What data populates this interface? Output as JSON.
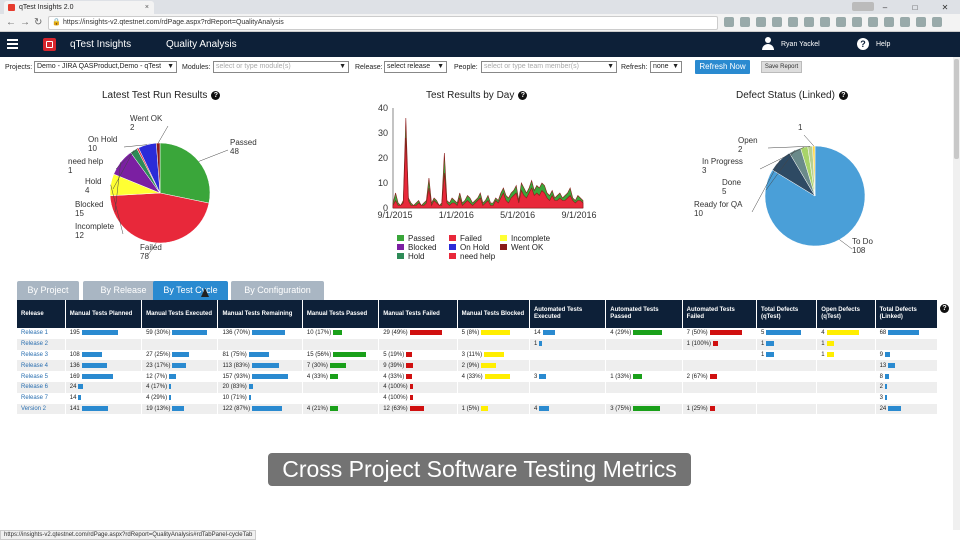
{
  "browser": {
    "tab_title": "qTest Insights 2.0",
    "tab_close": "×",
    "url": "https://insights-v2.qtestnet.com/rdPage.aspx?rdReport=QualityAnalysis",
    "profile": "",
    "win_min": "–",
    "win_max": "□",
    "win_close": "✕"
  },
  "appbar": {
    "app_name": "qTest Insights",
    "page_name": "Quality Analysis",
    "user": "Ryan Yackel",
    "help": "Help"
  },
  "filters": {
    "projects_label": "Projects:",
    "projects_value": "Demo - JIRA QASProduct,Demo - qTest",
    "modules_label": "Modules:",
    "modules_placeholder": "select or type module(s)",
    "release_label": "Release:",
    "release_value": "select release",
    "people_label": "People:",
    "people_placeholder": "select or type team member(s)",
    "refresh_label": "Refresh:",
    "refresh_value": "none",
    "refresh_now": "Refresh Now",
    "save_report": "Save Report"
  },
  "charts_titles": {
    "latest": "Latest Test Run Results",
    "by_day": "Test Results by Day",
    "defects": "Defect Status (Linked)",
    "q": "?"
  },
  "chart_data": [
    {
      "type": "pie",
      "title": "Latest Test Run Results",
      "slices": [
        {
          "label": "Passed",
          "value": 48,
          "color": "#3aa63a"
        },
        {
          "label": "Failed",
          "value": 78,
          "color": "#e8283a"
        },
        {
          "label": "Incomplete",
          "value": 12,
          "color": "#ffff33"
        },
        {
          "label": "Blocked",
          "value": 15,
          "color": "#7b1fa2"
        },
        {
          "label": "Hold",
          "value": 4,
          "color": "#2e8b57"
        },
        {
          "label": "need help",
          "value": 1,
          "color": "#e8283a"
        },
        {
          "label": "On Hold",
          "value": 10,
          "color": "#2b2bd8"
        },
        {
          "label": "Went OK",
          "value": 2,
          "color": "#8b1a1a"
        }
      ]
    },
    {
      "type": "area",
      "title": "Test Results by Day",
      "ylim": [
        0,
        40
      ],
      "yticks": [
        0,
        10,
        20,
        30,
        40
      ],
      "xticks": [
        "9/1/2015",
        "1/1/2016",
        "5/1/2016",
        "9/1/2016"
      ],
      "x_start": "9/1/2015",
      "x_end": "9/30/2016",
      "series": [
        {
          "name": "Passed",
          "color": "#3aa63a",
          "values": [
            2,
            6,
            2,
            1,
            3,
            36,
            4,
            2,
            1,
            2,
            3,
            1,
            2,
            3,
            12,
            2,
            4,
            3,
            1,
            2,
            22,
            3,
            2,
            4,
            3,
            2,
            6,
            2,
            3,
            5,
            4,
            2,
            3,
            4,
            6,
            2,
            3,
            5,
            2,
            2,
            4,
            3,
            6,
            8,
            5,
            4,
            6,
            7,
            9,
            3,
            10,
            8,
            6,
            8,
            11,
            7,
            9,
            8,
            10,
            9,
            6,
            5,
            7,
            4,
            5,
            6,
            4,
            5,
            6,
            8,
            4,
            3,
            5,
            4,
            3
          ]
        },
        {
          "name": "Failed",
          "color": "#e8283a",
          "values": [
            1,
            3,
            1,
            1,
            2,
            28,
            3,
            1,
            1,
            1,
            2,
            1,
            1,
            2,
            8,
            1,
            3,
            2,
            1,
            1,
            14,
            2,
            1,
            2,
            2,
            1,
            4,
            1,
            2,
            3,
            2,
            1,
            2,
            3,
            4,
            1,
            2,
            3,
            1,
            1,
            3,
            2,
            4,
            6,
            3,
            2,
            4,
            5,
            6,
            2,
            7,
            5,
            4,
            6,
            8,
            5,
            6,
            5,
            7,
            6,
            4,
            3,
            5,
            3,
            3,
            4,
            3,
            3,
            4,
            5,
            3,
            2,
            3,
            3,
            2
          ]
        }
      ],
      "legend": [
        "Passed",
        "Failed",
        "Incomplete",
        "Blocked",
        "On Hold",
        "Went OK",
        "Hold",
        "need help"
      ],
      "legend_colors": [
        "#3aa63a",
        "#e8283a",
        "#ffff33",
        "#7b1fa2",
        "#2b2bd8",
        "#8b1a1a",
        "#2e8b57",
        "#e8283a"
      ]
    },
    {
      "type": "pie",
      "title": "Defect Status (Linked)",
      "slices": [
        {
          "label": "To Do",
          "value": 108,
          "color": "#4a9fd8"
        },
        {
          "label": "Ready for QA",
          "value": 10,
          "color": "#2e4a63"
        },
        {
          "label": "Done",
          "value": 5,
          "color": "#6a8a8a"
        },
        {
          "label": "In Progress",
          "value": 3,
          "color": "#a8d36a"
        },
        {
          "label": "Open",
          "value": 2,
          "color": "#b8d090"
        },
        {
          "label": "",
          "value": 1,
          "color": "#ffd84a"
        }
      ],
      "unlabeled_callout": "1"
    }
  ],
  "tabs": [
    "By Project",
    "By Release",
    "By Test Cycle",
    "By Configuration"
  ],
  "table": {
    "headers": [
      "Release",
      "Manual Tests Planned",
      "Manual Tests Executed",
      "Manual Tests Remaining",
      "Manual Tests Passed",
      "Manual Tests Failed",
      "Manual Tests Blocked",
      "Automated Tests Executed",
      "Automated Tests Passed",
      "Automated Tests Failed",
      "Total Defects (qTest)",
      "Open Defects (qTest)",
      "Total Defects (Linked)"
    ],
    "bar_colors": [
      "",
      "#2a8ad0",
      "#2a8ad0",
      "#2a8ad0",
      "#1aa01a",
      "#d01010",
      "#ffee00",
      "#2a8ad0",
      "#1aa01a",
      "#d01010",
      "#2a8ad0",
      "#ffee00",
      "#2a8ad0"
    ],
    "rows": [
      [
        "Release 1",
        "195",
        "59 (30%)",
        "136 (70%)",
        "10 (17%)",
        "29 (49%)",
        "5 (8%)",
        "14",
        "4 (29%)",
        "7 (50%)",
        "5",
        "4",
        "68"
      ],
      [
        "Release 2",
        "",
        "",
        "",
        "",
        "",
        "",
        "1",
        "",
        "1 (100%)",
        "1",
        "1",
        ""
      ],
      [
        "Release 3",
        "108",
        "27 (25%)",
        "81 (75%)",
        "15 (56%)",
        "5 (19%)",
        "3 (11%)",
        "",
        "",
        "",
        "1",
        "1",
        "9"
      ],
      [
        "Release 4",
        "136",
        "23 (17%)",
        "113 (83%)",
        "7 (30%)",
        "9 (39%)",
        "2 (9%)",
        "",
        "",
        "",
        "",
        "",
        "13"
      ],
      [
        "Release 5",
        "169",
        "12 (7%)",
        "157 (93%)",
        "4 (33%)",
        "4 (33%)",
        "4 (33%)",
        "3",
        "1 (33%)",
        "2 (67%)",
        "",
        "",
        "8"
      ],
      [
        "Release 6",
        "24",
        "4 (17%)",
        "20 (83%)",
        "",
        "4 (100%)",
        "",
        "",
        "",
        "",
        "",
        "",
        "2"
      ],
      [
        "Release 7",
        "14",
        "4 (29%)",
        "10 (71%)",
        "",
        "4 (100%)",
        "",
        "",
        "",
        "",
        "",
        "",
        "3"
      ],
      [
        "Version 2",
        "141",
        "19 (13%)",
        "122 (87%)",
        "4 (21%)",
        "12 (63%)",
        "1 (5%)",
        "4",
        "3 (75%)",
        "1 (25%)",
        "",
        "",
        "24"
      ]
    ],
    "bar_fractions": [
      [
        0,
        1.0,
        0.95,
        0.9,
        0.25,
        0.9,
        0.8,
        0.35,
        0.8,
        0.9,
        0.95,
        0.9,
        0.85
      ],
      [
        0,
        0,
        0,
        0,
        0,
        0,
        0,
        0.08,
        0,
        0.15,
        0.2,
        0.2,
        0
      ],
      [
        0,
        0.55,
        0.45,
        0.55,
        0.9,
        0.15,
        0.55,
        0,
        0,
        0,
        0.2,
        0.2,
        0.15
      ],
      [
        0,
        0.7,
        0.38,
        0.75,
        0.45,
        0.2,
        0.4,
        0,
        0,
        0,
        0,
        0,
        0.2
      ],
      [
        0,
        0.87,
        0.2,
        1.0,
        0.22,
        0.15,
        0.7,
        0.2,
        0.25,
        0.2,
        0,
        0,
        0.12
      ],
      [
        0,
        0.12,
        0.06,
        0.12,
        0,
        0.1,
        0,
        0,
        0,
        0,
        0,
        0,
        0.05
      ],
      [
        0,
        0.07,
        0.06,
        0.07,
        0,
        0.1,
        0,
        0,
        0,
        0,
        0,
        0,
        0.05
      ],
      [
        0,
        0.72,
        0.32,
        0.82,
        0.22,
        0.4,
        0.2,
        0.28,
        0.75,
        0.15,
        0,
        0,
        0.35
      ]
    ]
  },
  "caption": "Cross Project Software Testing Metrics",
  "status_url": "https://insights-v2.qtestnet.com/rdPage.aspx?rdReport=QualityAnalysis#rdTabPanel-cycleTab"
}
